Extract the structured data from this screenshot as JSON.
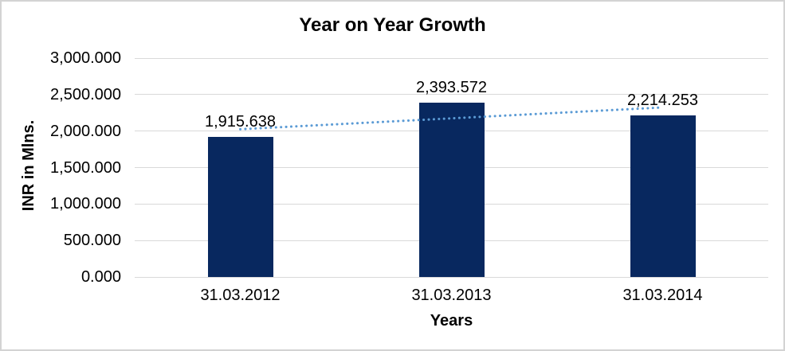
{
  "chart_data": {
    "type": "bar",
    "title": "Year on Year Growth",
    "xlabel": "Years",
    "ylabel": "INR in Mlns.",
    "categories": [
      "31.03.2012",
      "31.03.2013",
      "31.03.2014"
    ],
    "values": [
      1915.638,
      2393.572,
      2214.253
    ],
    "value_labels": [
      "1,915.638",
      "2,393.572",
      "2,214.253"
    ],
    "ylim": [
      0,
      3000
    ],
    "ytick_step": 500,
    "ytick_labels": [
      "0.000",
      "500.000",
      "1,000.000",
      "1,500.000",
      "2,000.000",
      "2,500.000",
      "3,000.000"
    ],
    "grid": true,
    "legend_position": "none",
    "bar_color": "#08285f",
    "trendline": {
      "type": "linear",
      "style": "dotted",
      "color": "#5b9bd5",
      "start_value": 2025.2,
      "end_value": 2323.8
    }
  },
  "colors": {
    "gridline": "#d9d9d9",
    "frame_border": "#d3d3d3",
    "text": "#000000",
    "background": "#ffffff"
  }
}
